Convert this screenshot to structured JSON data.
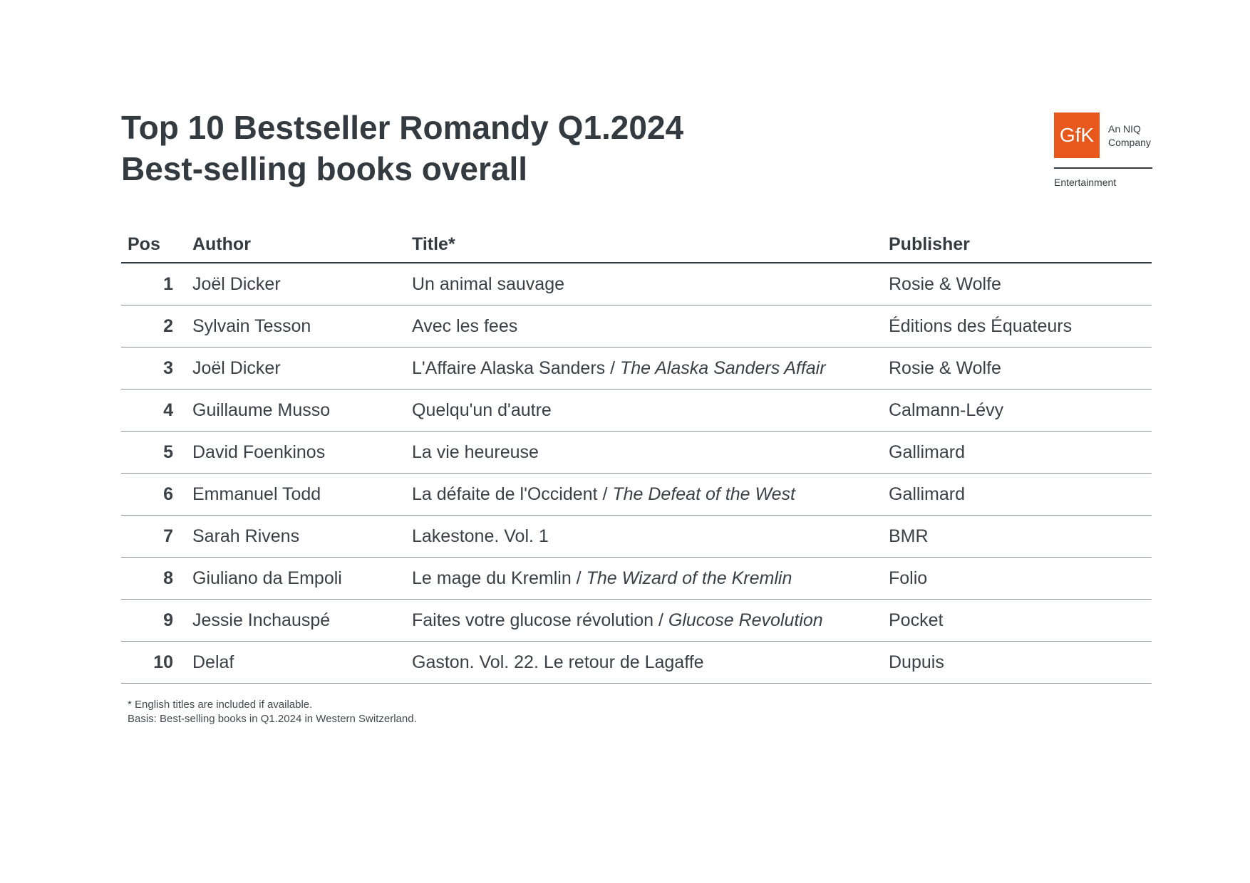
{
  "header": {
    "title_line1": "Top 10 Bestseller Romandy Q1.2024",
    "title_line2": "Best-selling books overall"
  },
  "logo": {
    "mark": "GfK",
    "tagline_line1": "An NIQ",
    "tagline_line2": "Company",
    "division": "Entertainment",
    "brand_color": "#e8581c"
  },
  "table": {
    "columns": [
      "Pos",
      "Author",
      "Title*",
      "Publisher"
    ],
    "rows": [
      {
        "pos": "1",
        "author": "Joël Dicker",
        "title": "Un animal sauvage",
        "title_en": "",
        "publisher": "Rosie & Wolfe"
      },
      {
        "pos": "2",
        "author": "Sylvain Tesson",
        "title": "Avec les fees",
        "title_en": "",
        "publisher": "Éditions des Équateurs"
      },
      {
        "pos": "3",
        "author": "Joël Dicker",
        "title": "L'Affaire Alaska Sanders",
        "title_en": "The Alaska Sanders Affair",
        "publisher": "Rosie & Wolfe"
      },
      {
        "pos": "4",
        "author": "Guillaume Musso",
        "title": "Quelqu'un d'autre",
        "title_en": "",
        "publisher": "Calmann-Lévy"
      },
      {
        "pos": "5",
        "author": "David Foenkinos",
        "title": "La vie heureuse",
        "title_en": "",
        "publisher": "Gallimard"
      },
      {
        "pos": "6",
        "author": "Emmanuel Todd",
        "title": "La défaite de l'Occident",
        "title_en": "The Defeat of the West",
        "publisher": "Gallimard"
      },
      {
        "pos": "7",
        "author": "Sarah Rivens",
        "title": "Lakestone. Vol. 1",
        "title_en": "",
        "publisher": "BMR"
      },
      {
        "pos": "8",
        "author": "Giuliano da Empoli",
        "title": "Le mage du Kremlin",
        "title_en": "The Wizard of the Kremlin",
        "publisher": "Folio"
      },
      {
        "pos": "9",
        "author": "Jessie Inchauspé",
        "title": "Faites votre glucose révolution",
        "title_en": "Glucose Revolution",
        "publisher": "Pocket"
      },
      {
        "pos": "10",
        "author": "Delaf",
        "title": "Gaston. Vol. 22. Le retour de Lagaffe",
        "title_en": "",
        "publisher": "Dupuis"
      }
    ],
    "title_separator": " / "
  },
  "footnotes": {
    "line1": "* English titles are included if available.",
    "line2": "Basis: Best-selling books in Q1.2024 in Western Switzerland."
  }
}
